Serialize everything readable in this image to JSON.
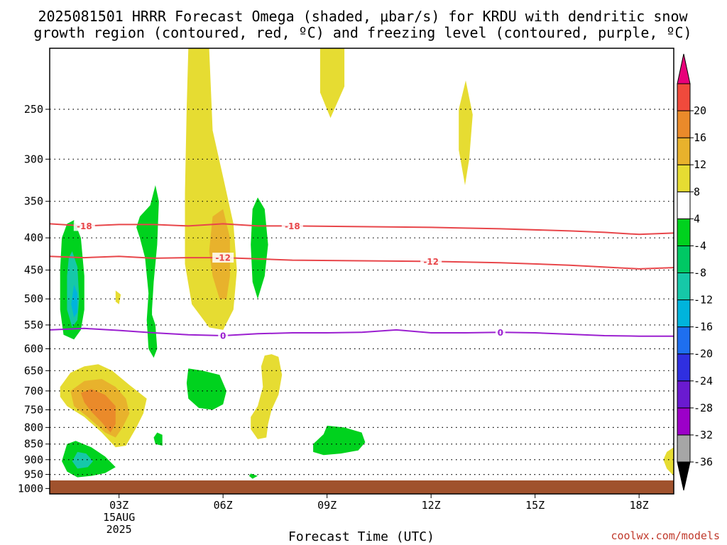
{
  "title_line1": "2025081501 HRRR Forecast Omega (shaded, μbar/s) for KRDU with dendritic snow",
  "title_line2": "growth region (contoured, red, ºC) and freezing level (contoured, purple, ºC)",
  "credit": "coolwx.com/models",
  "chart_data": {
    "type": "heatmap",
    "xlabel": "Forecast Time (UTC)",
    "x_ticks": [
      {
        "hour": 3,
        "label": "03Z",
        "sub1": "15AUG",
        "sub2": "2025"
      },
      {
        "hour": 6,
        "label": "06Z"
      },
      {
        "hour": 9,
        "label": "09Z"
      },
      {
        "hour": 12,
        "label": "12Z"
      },
      {
        "hour": 15,
        "label": "15Z"
      },
      {
        "hour": 18,
        "label": "18Z"
      }
    ],
    "xlim_hours": [
      1,
      19
    ],
    "y_ticks": [
      250,
      300,
      350,
      400,
      450,
      500,
      550,
      600,
      650,
      700,
      750,
      800,
      850,
      900,
      950,
      1000
    ],
    "y_tick_labels": [
      "250",
      "300",
      "350",
      "400",
      "450",
      "500",
      "550",
      "600",
      "650",
      "700",
      "750",
      "800",
      "850",
      "900",
      "950",
      "1000"
    ],
    "ylim_hpa": [
      200,
      1020
    ],
    "yscale": "log",
    "grid": "dotted",
    "colorbar": {
      "orientation": "vertical",
      "placement": "right",
      "bounds": [
        -36,
        -32,
        -28,
        -24,
        -20,
        -16,
        -12,
        -8,
        -4,
        4,
        8,
        12,
        16,
        20
      ],
      "labels": [
        "-36",
        "-32",
        "-28",
        "-24",
        "-20",
        "-16",
        "-12",
        "-8",
        "-4",
        "4",
        "8",
        "12",
        "16",
        "20"
      ],
      "colors": [
        "#a6a6a6",
        "#9c00c8",
        "#6a1ad0",
        "#2f2fe0",
        "#1e6ff0",
        "#00b4dc",
        "#16c8a8",
        "#00c864",
        "#00d21e",
        "#ffffff",
        "#e6dc32",
        "#e8b22c",
        "#ea8a2a",
        "#f04a3c"
      ],
      "under_color": "#000000",
      "over_color": "#e8007a"
    },
    "shaded_regions": [
      {
        "category": "4..8",
        "color": "#e6dc32",
        "outline": [
          [
            5.0,
            200
          ],
          [
            5.6,
            200
          ],
          [
            5.7,
            270
          ],
          [
            6.0,
            320
          ],
          [
            6.3,
            380
          ],
          [
            6.4,
            450
          ],
          [
            6.3,
            520
          ],
          [
            6.0,
            560
          ],
          [
            5.6,
            555
          ],
          [
            5.1,
            510
          ],
          [
            4.9,
            440
          ],
          [
            4.9,
            340
          ],
          [
            4.95,
            250
          ]
        ]
      },
      {
        "category": "4..8",
        "color": "#e6dc32",
        "outline": [
          [
            8.8,
            200
          ],
          [
            9.5,
            200
          ],
          [
            9.5,
            230
          ],
          [
            9.1,
            258
          ],
          [
            8.8,
            235
          ]
        ]
      },
      {
        "category": "4..8",
        "color": "#e6dc32",
        "outline": [
          [
            13.0,
            225
          ],
          [
            13.2,
            255
          ],
          [
            13.1,
            300
          ],
          [
            12.98,
            330
          ],
          [
            12.8,
            290
          ],
          [
            12.8,
            250
          ]
        ]
      },
      {
        "category": "4..8",
        "color": "#e6dc32",
        "outline": [
          [
            1.3,
            690
          ],
          [
            1.6,
            655
          ],
          [
            2.0,
            640
          ],
          [
            2.4,
            635
          ],
          [
            2.8,
            650
          ],
          [
            3.3,
            685
          ],
          [
            3.8,
            720
          ],
          [
            3.7,
            760
          ],
          [
            3.5,
            800
          ],
          [
            3.2,
            855
          ],
          [
            2.9,
            860
          ],
          [
            2.5,
            815
          ],
          [
            2.0,
            770
          ],
          [
            1.5,
            740
          ],
          [
            1.3,
            715
          ]
        ]
      },
      {
        "category": "4..8",
        "color": "#e6dc32",
        "outline": [
          [
            2.9,
            485
          ],
          [
            3.05,
            492
          ],
          [
            3.0,
            510
          ],
          [
            2.9,
            505
          ]
        ]
      },
      {
        "category": "4..8",
        "color": "#e6dc32",
        "outline": [
          [
            7.4,
            612
          ],
          [
            7.6,
            618
          ],
          [
            7.7,
            660
          ],
          [
            7.6,
            710
          ],
          [
            7.4,
            750
          ],
          [
            7.3,
            790
          ],
          [
            7.25,
            830
          ],
          [
            7.0,
            835
          ],
          [
            6.8,
            805
          ],
          [
            6.8,
            770
          ],
          [
            7.0,
            740
          ],
          [
            7.15,
            690
          ],
          [
            7.1,
            640
          ],
          [
            7.2,
            615
          ]
        ]
      },
      {
        "category": "4..8",
        "color": "#e6dc32",
        "outline": [
          [
            19.0,
            860
          ],
          [
            18.8,
            875
          ],
          [
            18.7,
            900
          ],
          [
            18.8,
            930
          ],
          [
            19.0,
            955
          ]
        ]
      },
      {
        "category": "8..12",
        "color": "#e8b22c",
        "outline": [
          [
            1.6,
            700
          ],
          [
            2.0,
            675
          ],
          [
            2.5,
            670
          ],
          [
            2.9,
            690
          ],
          [
            3.2,
            720
          ],
          [
            3.3,
            760
          ],
          [
            3.1,
            800
          ],
          [
            2.9,
            830
          ],
          [
            2.6,
            815
          ],
          [
            2.1,
            770
          ],
          [
            1.7,
            740
          ]
        ]
      },
      {
        "category": "8..12",
        "color": "#e8b22c",
        "outline": [
          [
            5.7,
            370
          ],
          [
            6.0,
            360
          ],
          [
            6.2,
            400
          ],
          [
            6.2,
            460
          ],
          [
            6.1,
            500
          ],
          [
            5.9,
            500
          ],
          [
            5.7,
            460
          ],
          [
            5.6,
            420
          ]
        ]
      },
      {
        "category": "12..16",
        "color": "#ea8a2a",
        "outline": [
          [
            1.9,
            705
          ],
          [
            2.2,
            695
          ],
          [
            2.6,
            710
          ],
          [
            2.9,
            740
          ],
          [
            2.9,
            790
          ],
          [
            2.75,
            815
          ],
          [
            2.5,
            785
          ],
          [
            2.2,
            755
          ],
          [
            2.0,
            730
          ]
        ]
      },
      {
        "category": "-8..-4",
        "color": "#00d21e",
        "outline": [
          [
            1.5,
            380
          ],
          [
            1.7,
            375
          ],
          [
            1.9,
            400
          ],
          [
            2.0,
            460
          ],
          [
            2.0,
            520
          ],
          [
            1.9,
            560
          ],
          [
            1.7,
            580
          ],
          [
            1.4,
            570
          ],
          [
            1.3,
            520
          ],
          [
            1.3,
            450
          ],
          [
            1.35,
            400
          ]
        ]
      },
      {
        "category": "-8..-4",
        "color": "#00d21e",
        "outline": [
          [
            3.9,
            355
          ],
          [
            4.05,
            330
          ],
          [
            4.15,
            350
          ],
          [
            4.1,
            410
          ],
          [
            4.0,
            470
          ],
          [
            3.95,
            520
          ],
          [
            3.95,
            530
          ],
          [
            4.05,
            550
          ],
          [
            4.1,
            600
          ],
          [
            4.0,
            620
          ],
          [
            3.85,
            600
          ],
          [
            3.8,
            540
          ],
          [
            3.85,
            490
          ],
          [
            3.75,
            430
          ],
          [
            3.6,
            400
          ],
          [
            3.5,
            385
          ],
          [
            3.6,
            370
          ]
        ]
      },
      {
        "category": "-8..-4",
        "color": "#00d21e",
        "outline": [
          [
            5.0,
            645
          ],
          [
            5.4,
            650
          ],
          [
            5.9,
            660
          ],
          [
            6.1,
            700
          ],
          [
            6.0,
            735
          ],
          [
            5.7,
            750
          ],
          [
            5.3,
            745
          ],
          [
            5.0,
            720
          ],
          [
            4.95,
            680
          ]
        ]
      },
      {
        "category": "-8..-4",
        "color": "#00d21e",
        "outline": [
          [
            7.0,
            345
          ],
          [
            7.2,
            360
          ],
          [
            7.3,
            410
          ],
          [
            7.2,
            460
          ],
          [
            7.0,
            500
          ],
          [
            6.85,
            470
          ],
          [
            6.8,
            410
          ],
          [
            6.85,
            360
          ]
        ]
      },
      {
        "category": "-8..-4",
        "color": "#00d21e",
        "outline": [
          [
            4.1,
            815
          ],
          [
            4.25,
            822
          ],
          [
            4.25,
            855
          ],
          [
            4.05,
            850
          ],
          [
            4.0,
            830
          ]
        ]
      },
      {
        "category": "-8..-4",
        "color": "#00d21e",
        "outline": [
          [
            1.5,
            850
          ],
          [
            1.75,
            840
          ],
          [
            2.2,
            860
          ],
          [
            2.6,
            890
          ],
          [
            2.9,
            925
          ],
          [
            2.6,
            945
          ],
          [
            2.2,
            955
          ],
          [
            1.8,
            960
          ],
          [
            1.5,
            940
          ],
          [
            1.35,
            905
          ]
        ]
      },
      {
        "category": "-8..-4",
        "color": "#00d21e",
        "outline": [
          [
            6.8,
            947
          ],
          [
            7.0,
            955
          ],
          [
            6.85,
            965
          ],
          [
            6.75,
            955
          ]
        ]
      },
      {
        "category": "-8..-4",
        "color": "#00d21e",
        "outline": [
          [
            9.0,
            795
          ],
          [
            9.5,
            800
          ],
          [
            10.0,
            815
          ],
          [
            10.1,
            845
          ],
          [
            9.9,
            870
          ],
          [
            9.4,
            880
          ],
          [
            8.9,
            885
          ],
          [
            8.6,
            875
          ],
          [
            8.6,
            850
          ],
          [
            8.9,
            820
          ]
        ]
      },
      {
        "category": "-12..-8",
        "color": "#16c8a8",
        "outline": [
          [
            1.65,
            420
          ],
          [
            1.8,
            445
          ],
          [
            1.85,
            500
          ],
          [
            1.8,
            540
          ],
          [
            1.65,
            555
          ],
          [
            1.5,
            520
          ],
          [
            1.5,
            460
          ],
          [
            1.55,
            430
          ]
        ]
      },
      {
        "category": "-12..-8",
        "color": "#16c8a8",
        "outline": [
          [
            1.8,
            875
          ],
          [
            2.05,
            880
          ],
          [
            2.25,
            905
          ],
          [
            2.1,
            925
          ],
          [
            1.8,
            930
          ],
          [
            1.65,
            905
          ]
        ]
      },
      {
        "category": "-16..-12",
        "color": "#00b4dc",
        "outline": [
          [
            1.7,
            475
          ],
          [
            1.8,
            490
          ],
          [
            1.8,
            525
          ],
          [
            1.7,
            535
          ],
          [
            1.62,
            510
          ]
        ]
      }
    ],
    "contours": [
      {
        "name": "-18",
        "color": "#e8464a",
        "points": [
          [
            1,
            380
          ],
          [
            2,
            383
          ],
          [
            3,
            381
          ],
          [
            4,
            381
          ],
          [
            5,
            383
          ],
          [
            6,
            380
          ],
          [
            7,
            383
          ],
          [
            8,
            383
          ],
          [
            10,
            384
          ],
          [
            12,
            385
          ],
          [
            14,
            387
          ],
          [
            16,
            390
          ],
          [
            17,
            392
          ],
          [
            18,
            395
          ],
          [
            19,
            393
          ]
        ],
        "label_hours": [
          2,
          8
        ]
      },
      {
        "name": "-12",
        "color": "#e8464a",
        "points": [
          [
            1,
            428
          ],
          [
            2,
            430
          ],
          [
            3,
            428
          ],
          [
            4,
            431
          ],
          [
            5,
            430
          ],
          [
            6,
            430
          ],
          [
            7,
            432
          ],
          [
            8,
            434
          ],
          [
            10,
            435
          ],
          [
            12,
            436
          ],
          [
            14,
            438
          ],
          [
            16,
            442
          ],
          [
            18,
            448
          ],
          [
            19,
            446
          ]
        ],
        "label_hours": [
          6,
          12
        ]
      },
      {
        "name": "0",
        "color": "#9b1fd0",
        "points": [
          [
            1,
            560
          ],
          [
            2,
            557
          ],
          [
            3,
            561
          ],
          [
            4,
            566
          ],
          [
            5,
            570
          ],
          [
            6,
            572
          ],
          [
            7,
            568
          ],
          [
            8,
            566
          ],
          [
            9,
            566
          ],
          [
            10,
            565
          ],
          [
            11,
            560
          ],
          [
            12,
            566
          ],
          [
            13,
            566
          ],
          [
            14,
            565
          ],
          [
            15,
            566
          ],
          [
            16,
            569
          ],
          [
            17,
            572
          ],
          [
            18,
            573
          ],
          [
            19,
            573
          ]
        ],
        "label_hours": [
          6,
          14
        ]
      }
    ]
  }
}
